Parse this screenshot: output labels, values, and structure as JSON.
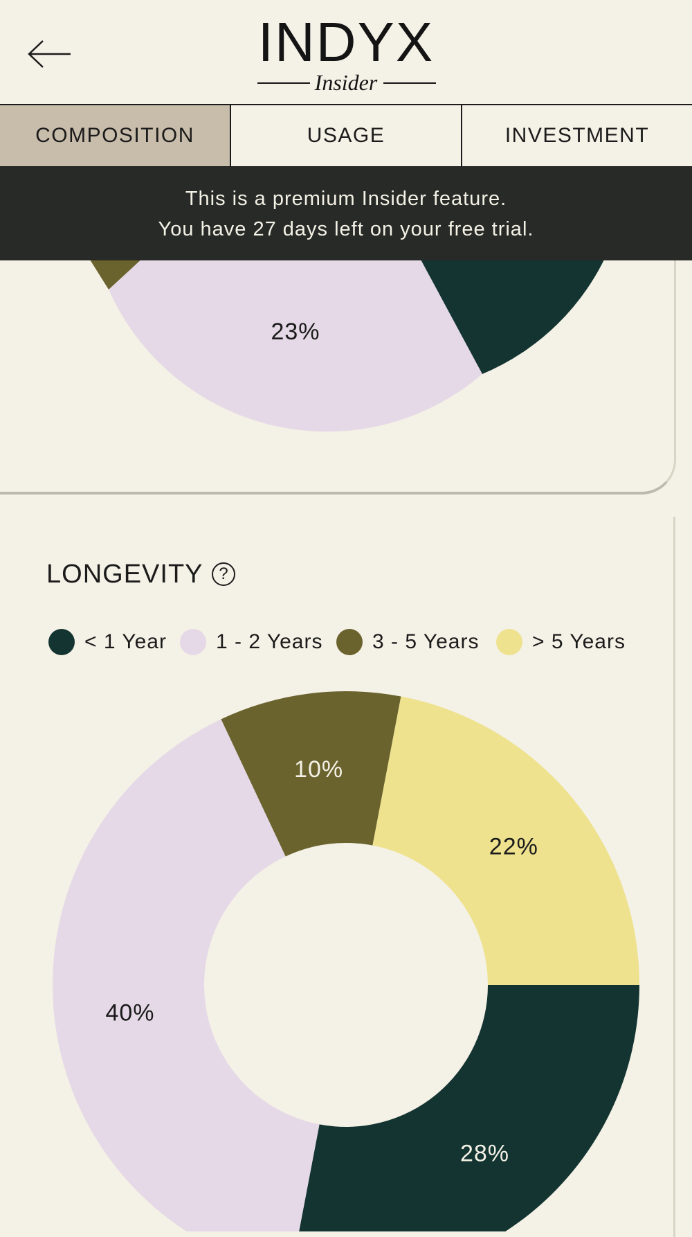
{
  "header": {
    "back_icon": "arrow-left-icon",
    "logo_main": "INDYX",
    "logo_sub": "Insider"
  },
  "tabs": [
    {
      "label": "COMPOSITION",
      "active": true
    },
    {
      "label": "USAGE",
      "active": false
    },
    {
      "label": "INVESTMENT",
      "active": false
    }
  ],
  "banner": {
    "line1": "This is a premium Insider feature.",
    "line2": "You have 27 days left on your free trial."
  },
  "colors": {
    "background": "#f4f1e6",
    "lt1y": "#133431",
    "y1_2": "#e5d9e7",
    "y3_5": "#6b632e",
    "gt5y": "#eee28e",
    "tab_active": "#c8bcab",
    "banner_bg": "#272a26"
  },
  "top_chart": {
    "visible_label": "23%"
  },
  "longevity": {
    "title": "LONGEVITY",
    "help_icon": "question-circle-icon",
    "help_glyph": "?"
  },
  "chart_data": {
    "type": "pie",
    "title": "LONGEVITY",
    "donut": true,
    "legend_position": "top",
    "categories": [
      "< 1 Year",
      "1 - 2 Years",
      "3 - 5 Years",
      "> 5 Years"
    ],
    "values": [
      28,
      40,
      10,
      22
    ],
    "labels": [
      "28%",
      "40%",
      "10%",
      "22%"
    ],
    "colors": [
      "#133431",
      "#e5d9e7",
      "#6b632e",
      "#eee28e"
    ]
  }
}
